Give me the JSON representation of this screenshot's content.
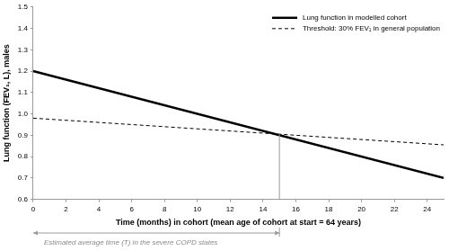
{
  "chart_data": {
    "type": "line",
    "x_label": "Time (months) in cohort (mean age of cohort at start = 64 years)",
    "y_label": "Lung function (FEV₁, L), males",
    "series": [
      {
        "name": "Lung function in modelled cohort",
        "color": "#000000",
        "line_style": "solid",
        "x": [
          0,
          25
        ],
        "values": [
          1.2,
          0.7
        ]
      },
      {
        "name": "Threshold: 30% FEV₁ in general population",
        "color": "#000000",
        "line_style": "dashed",
        "x": [
          0,
          25
        ],
        "values": [
          0.98,
          0.855
        ]
      }
    ],
    "xlim": [
      0,
      25
    ],
    "xticks": [
      0,
      2,
      4,
      6,
      8,
      10,
      12,
      14,
      16,
      18,
      20,
      22,
      24
    ],
    "ylim": [
      0.6,
      1.5
    ],
    "yticks": [
      0.6,
      0.7,
      0.8,
      0.9,
      {
        "value": 1,
        "label": "1.0"
      },
      1.1,
      1.2,
      1.3,
      1.4,
      1.5
    ],
    "grid": false,
    "legend": "top right",
    "annotations": [
      {
        "text": "Estimated average time (T) in the severe COPD states",
        "x": [
          0,
          15
        ],
        "y": 0.905
      }
    ]
  }
}
